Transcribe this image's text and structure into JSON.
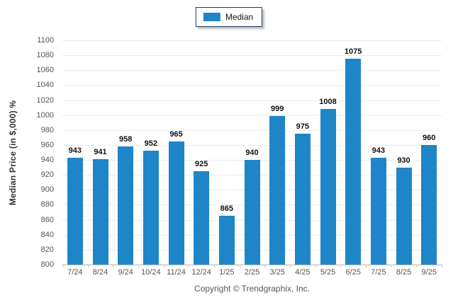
{
  "legend": {
    "label": "Median"
  },
  "footer": "Copyright © Trendgraphix, Inc.",
  "colors": {
    "bar": "#1e86c8",
    "legend_border": "#1f3a66",
    "grid": "#ececec",
    "axis": "#b3b3b3",
    "tick_text": "#5a544a",
    "value_label_text": "#111111",
    "footer_text": "#595959"
  },
  "chart_data": {
    "type": "bar",
    "title": "",
    "xlabel": "",
    "ylabel": "Median Price (in $,000) %",
    "categories": [
      "7/24",
      "8/24",
      "9/24",
      "10/24",
      "11/24",
      "12/24",
      "1/25",
      "2/25",
      "3/25",
      "4/25",
      "5/25",
      "6/25",
      "7/25",
      "8/25",
      "9/25"
    ],
    "series": [
      {
        "name": "Median",
        "values": [
          943,
          941,
          958,
          952,
          965,
          925,
          865,
          940,
          999,
          975,
          1008,
          1075,
          943,
          930,
          960
        ]
      }
    ],
    "ylim": [
      800,
      1100
    ],
    "ytick_step": 20,
    "grid": true,
    "legend_position": "top-center"
  }
}
